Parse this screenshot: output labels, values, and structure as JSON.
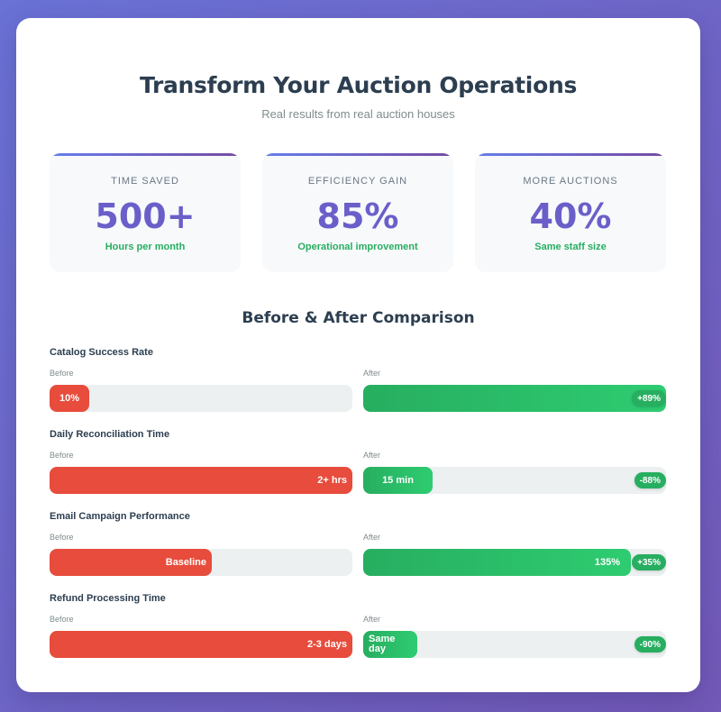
{
  "header": {
    "title": "Transform Your Auction Operations",
    "subtitle": "Real results from real auction houses"
  },
  "stats": [
    {
      "label": "TIME SAVED",
      "value": "500+",
      "desc": "Hours per month"
    },
    {
      "label": "EFFICIENCY GAIN",
      "value": "85%",
      "desc": "Operational improvement"
    },
    {
      "label": "MORE AUCTIONS",
      "value": "40%",
      "desc": "Same staff size"
    }
  ],
  "comparison": {
    "title": "Before & After Comparison",
    "before_label": "Before",
    "after_label": "After",
    "metrics": [
      {
        "title": "Catalog Success Rate",
        "before_text": "10%",
        "before_fill": 0.13,
        "after_text": "",
        "after_fill": 1.0,
        "badge": "+89%"
      },
      {
        "title": "Daily Reconciliation Time",
        "before_text": "2+ hrs",
        "before_fill": 1.0,
        "after_text": "15 min",
        "after_fill": 0.23,
        "badge": "-88%"
      },
      {
        "title": "Email Campaign Performance",
        "before_text": "Baseline",
        "before_fill": 0.535,
        "after_text": "135%",
        "after_fill": 0.885,
        "badge": "+35%"
      },
      {
        "title": "Refund Processing Time",
        "before_text": "2-3 days",
        "before_fill": 1.0,
        "after_text": "Same day",
        "after_fill": 0.18,
        "badge": "-90%"
      }
    ]
  },
  "colors": {
    "accent": "#6a5fc9",
    "positive": "#27ae60",
    "negative": "#e74c3c",
    "track": "#ecf0f1"
  }
}
